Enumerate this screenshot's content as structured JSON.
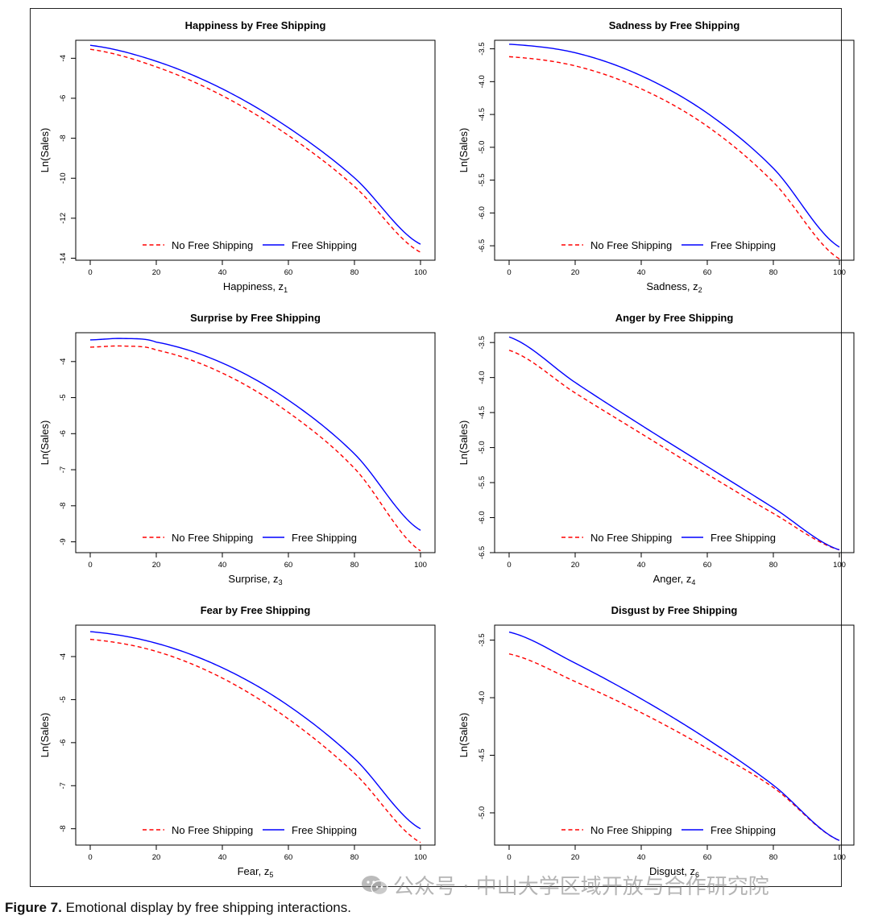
{
  "caption": {
    "label": "Figure 7.",
    "text": "Emotional display by free shipping interactions."
  },
  "watermark": {
    "icon": "wechat-icon",
    "text": "公众号 · 中山大学区域开放与合作研究院"
  },
  "colors": {
    "no_free_shipping": "#ff0000",
    "free_shipping": "#0000ff",
    "axis": "#000000"
  },
  "chart_data": [
    {
      "type": "line",
      "title": "Happiness by Free Shipping",
      "xlabel": "Happiness, z",
      "xlabel_sub": "1",
      "ylabel": "Ln(Sales)",
      "xlim": [
        0,
        100
      ],
      "ylim": [
        -14.1,
        -3.1
      ],
      "xticks": [
        0,
        20,
        40,
        60,
        80,
        100
      ],
      "yticks": [
        -4,
        -6,
        -8,
        -10,
        -12,
        -14
      ],
      "legend": {
        "position": "bottom-center"
      },
      "x": [
        0,
        20,
        40,
        60,
        80,
        100
      ],
      "series": [
        {
          "name": "No Free Shipping",
          "style": "dashed",
          "values": [
            -3.55,
            -4.43,
            -5.87,
            -7.86,
            -10.41,
            -13.7
          ]
        },
        {
          "name": "Free Shipping",
          "style": "solid",
          "values": [
            -3.35,
            -4.15,
            -5.53,
            -7.47,
            -9.98,
            -13.3
          ]
        }
      ]
    },
    {
      "type": "line",
      "title": "Sadness by Free Shipping",
      "xlabel": "Sadness, z",
      "xlabel_sub": "2",
      "ylabel": "Ln(Sales)",
      "xlim": [
        0,
        100
      ],
      "ylim": [
        -6.72,
        -3.37
      ],
      "xticks": [
        0,
        20,
        40,
        60,
        80,
        100
      ],
      "yticks": [
        -3.5,
        -4.0,
        -4.5,
        -5.0,
        -5.5,
        -6.0,
        -6.5
      ],
      "legend": {
        "position": "bottom-center"
      },
      "x": [
        0,
        20,
        40,
        60,
        80,
        100
      ],
      "series": [
        {
          "name": "No Free Shipping",
          "style": "dashed",
          "values": [
            -3.62,
            -3.76,
            -4.11,
            -4.68,
            -5.53,
            -6.7
          ]
        },
        {
          "name": "Free Shipping",
          "style": "solid",
          "values": [
            -3.43,
            -3.56,
            -3.91,
            -4.48,
            -5.32,
            -6.52
          ]
        }
      ]
    },
    {
      "type": "line",
      "title": "Surprise by Free Shipping",
      "xlabel": "Surprise, z",
      "xlabel_sub": "3",
      "ylabel": "Ln(Sales)",
      "xlim": [
        0,
        100
      ],
      "ylim": [
        -9.3,
        -3.2
      ],
      "xticks": [
        0,
        20,
        40,
        60,
        80,
        100
      ],
      "yticks": [
        -4,
        -5,
        -6,
        -7,
        -8,
        -9
      ],
      "legend": {
        "position": "bottom-center"
      },
      "x": [
        0,
        10,
        20,
        40,
        60,
        80,
        100
      ],
      "series": [
        {
          "name": "No Free Shipping",
          "style": "dashed",
          "values": [
            -3.6,
            -3.57,
            -3.68,
            -4.32,
            -5.41,
            -6.96,
            -9.25
          ]
        },
        {
          "name": "Free Shipping",
          "style": "solid",
          "values": [
            -3.4,
            -3.36,
            -3.46,
            -4.04,
            -5.07,
            -6.56,
            -8.68
          ]
        }
      ]
    },
    {
      "type": "line",
      "title": "Anger by Free Shipping",
      "xlabel": "Anger, z",
      "xlabel_sub": "4",
      "ylabel": "Ln(Sales)",
      "xlim": [
        0,
        100
      ],
      "ylim": [
        -6.5,
        -3.36
      ],
      "xticks": [
        0,
        20,
        40,
        60,
        80,
        100
      ],
      "yticks": [
        -3.5,
        -4.0,
        -4.5,
        -5.0,
        -5.5,
        -6.0,
        -6.5
      ],
      "legend": {
        "position": "bottom-center"
      },
      "x": [
        0,
        20,
        40,
        60,
        80,
        100
      ],
      "series": [
        {
          "name": "No Free Shipping",
          "style": "dashed",
          "values": [
            -3.61,
            -4.22,
            -4.8,
            -5.38,
            -5.94,
            -6.46
          ]
        },
        {
          "name": "Free Shipping",
          "style": "solid",
          "values": [
            -3.42,
            -4.07,
            -4.68,
            -5.27,
            -5.86,
            -6.46
          ]
        }
      ]
    },
    {
      "type": "line",
      "title": "Fear by Free Shipping",
      "xlabel": "Fear, z",
      "xlabel_sub": "5",
      "ylabel": "Ln(Sales)",
      "xlim": [
        0,
        100
      ],
      "ylim": [
        -8.38,
        -3.27
      ],
      "xticks": [
        0,
        20,
        40,
        60,
        80,
        100
      ],
      "yticks": [
        -4,
        -5,
        -6,
        -7,
        -8
      ],
      "legend": {
        "position": "bottom-center"
      },
      "x": [
        0,
        20,
        40,
        60,
        80,
        100
      ],
      "series": [
        {
          "name": "No Free Shipping",
          "style": "dashed",
          "values": [
            -3.6,
            -3.88,
            -4.5,
            -5.45,
            -6.71,
            -8.32
          ]
        },
        {
          "name": "Free Shipping",
          "style": "solid",
          "values": [
            -3.42,
            -3.69,
            -4.26,
            -5.14,
            -6.37,
            -8.0
          ]
        }
      ]
    },
    {
      "type": "line",
      "title": "Disgust by Free Shipping",
      "xlabel": "Disgust, z",
      "xlabel_sub": "6",
      "ylabel": "Ln(Sales)",
      "xlim": [
        0,
        100
      ],
      "ylim": [
        -5.28,
        -3.37
      ],
      "xticks": [
        0,
        20,
        40,
        60,
        80,
        100
      ],
      "yticks": [
        -3.5,
        -4.0,
        -4.5,
        -5.0
      ],
      "legend": {
        "position": "bottom-center"
      },
      "x": [
        0,
        20,
        40,
        60,
        80,
        100
      ],
      "series": [
        {
          "name": "No Free Shipping",
          "style": "dashed",
          "values": [
            -3.62,
            -3.86,
            -4.13,
            -4.44,
            -4.78,
            -5.24
          ]
        },
        {
          "name": "Free Shipping",
          "style": "solid",
          "values": [
            -3.43,
            -3.7,
            -4.01,
            -4.36,
            -4.76,
            -5.24
          ]
        }
      ]
    }
  ]
}
